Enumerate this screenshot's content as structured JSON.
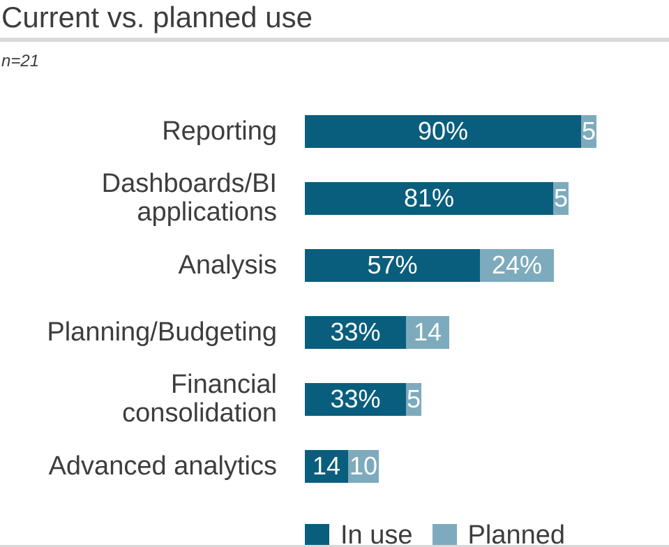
{
  "title": "Current vs. planned use",
  "sample_note": "n=21",
  "colors": {
    "in_use": "#0a5e7d",
    "planned": "#7dabbd",
    "text": "#3d3d3d",
    "divider": "#d9d9d9",
    "value_text": "#ffffff",
    "background": "#ffffff"
  },
  "display_categories": [
    "Reporting",
    "Dashboards/BI\napplications",
    "Analysis",
    "Planning/Budgeting",
    "Financial\nconsolidation",
    "Advanced analytics"
  ],
  "legend": {
    "in_use": "In use",
    "planned": "Planned"
  },
  "chart_data": {
    "type": "bar",
    "orientation": "horizontal",
    "stacked": true,
    "title": "Current vs. planned use",
    "sample_size": "n=21",
    "categories": [
      "Reporting",
      "Dashboards/BI applications",
      "Analysis",
      "Planning/Budgeting",
      "Financial consolidation",
      "Advanced analytics"
    ],
    "series": [
      {
        "name": "In use",
        "color": "#0a5e7d",
        "values": [
          90,
          81,
          57,
          33,
          33,
          14
        ]
      },
      {
        "name": "Planned",
        "color": "#7dabbd",
        "values": [
          5,
          5,
          24,
          14,
          5,
          10
        ]
      }
    ],
    "value_labels": {
      "in_use": [
        "90%",
        "81%",
        "57%",
        "33%",
        "33%",
        "14"
      ],
      "planned": [
        "5",
        "5",
        "24%",
        "14",
        "5",
        "10"
      ]
    },
    "unit": "percent",
    "xlim": [
      0,
      100
    ],
    "grid": false,
    "axis_ticks": "none",
    "legend_position": "bottom"
  }
}
